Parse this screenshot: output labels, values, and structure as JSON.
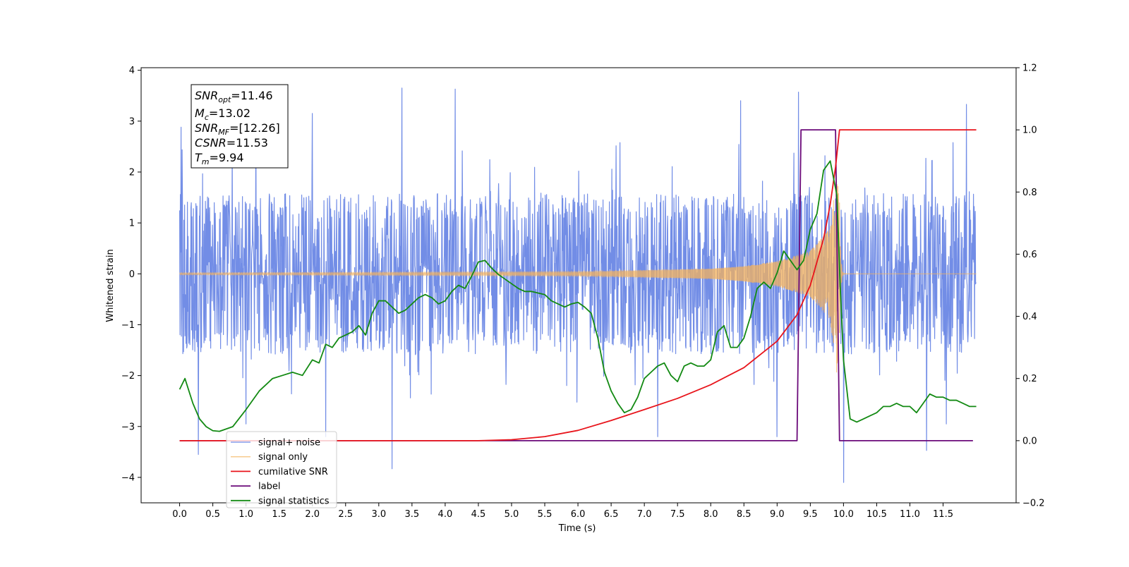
{
  "chart_data": {
    "type": "line",
    "xlabel": "Time (s)",
    "ylabel": "Whitened strain",
    "xlim": [
      -0.58,
      12.6
    ],
    "ylim": [
      -4.5,
      4.05
    ],
    "y2lim": [
      -0.2,
      1.2
    ],
    "x_ticks": [
      0.0,
      0.5,
      1.0,
      1.5,
      2.0,
      2.5,
      3.0,
      3.5,
      4.0,
      4.5,
      5.0,
      5.5,
      6.0,
      6.5,
      7.0,
      7.5,
      8.0,
      8.5,
      9.0,
      9.5,
      10.0,
      10.5,
      11.0,
      11.5
    ],
    "x_tick_labels": [
      "0.0",
      "0.5",
      "1.0",
      "1.5",
      "2.0",
      "2.5",
      "3.0",
      "3.5",
      "4.0",
      "4.5",
      "5.0",
      "5.5",
      "6.0",
      "6.5",
      "7.0",
      "7.5",
      "8.0",
      "8.5",
      "9.0",
      "9.5",
      "10.0",
      "10.5",
      "11.0",
      "11.5"
    ],
    "y_ticks": [
      4,
      3,
      2,
      1,
      0,
      -1,
      -2,
      -3,
      -4
    ],
    "y_tick_labels": [
      "4",
      "3",
      "2",
      "1",
      "0",
      "−1",
      "−2",
      "−3",
      "−4"
    ],
    "y2_ticks": [
      1.2,
      1.0,
      0.8,
      0.6,
      0.4,
      0.2,
      0.0,
      -0.2
    ],
    "y2_tick_labels": [
      "1.2",
      "1.0",
      "0.8",
      "0.6",
      "0.4",
      "0.2",
      "0.0",
      "−0.2"
    ],
    "grid": false,
    "legend_position": "bottom-left",
    "annotation": {
      "lines": [
        {
          "base": "SNR",
          "sub": "opt",
          "value": "=11.46"
        },
        {
          "base": "M",
          "sub": "c",
          "value": "=13.02"
        },
        {
          "base": "SNR",
          "sub": "MF",
          "value": "=[12.26]"
        },
        {
          "base": "CSNR",
          "sub": "",
          "value": "=11.53"
        },
        {
          "base": "T",
          "sub": "m",
          "value": "=9.94"
        }
      ]
    },
    "series": [
      {
        "name": "signal+ noise",
        "color": "#6f8be6",
        "axis": "left",
        "kind": "noise",
        "x_range": [
          0.0,
          12.0
        ],
        "typical_band": [
          -1.5,
          1.5
        ],
        "max_spikes": [
          [
            0.02,
            2.88
          ],
          [
            1.15,
            3.3
          ],
          [
            2.0,
            3.15
          ],
          [
            3.35,
            3.65
          ],
          [
            4.15,
            3.63
          ],
          [
            8.45,
            3.4
          ],
          [
            9.32,
            3.57
          ],
          [
            11.85,
            3.33
          ]
        ],
        "min_spikes": [
          [
            0.28,
            -3.55
          ],
          [
            1.0,
            -2.95
          ],
          [
            2.2,
            -3.2
          ],
          [
            3.2,
            -3.83
          ],
          [
            7.2,
            -3.2
          ],
          [
            9.0,
            -3.2
          ],
          [
            10.0,
            -4.1
          ],
          [
            11.25,
            -3.47
          ],
          [
            11.55,
            -2.95
          ]
        ]
      },
      {
        "name": "signal only",
        "color": "#f5b35c",
        "axis": "left",
        "kind": "chirp",
        "x_range": [
          0.0,
          12.0
        ],
        "merger_time": 9.94,
        "amplitude_envelope": [
          [
            0.0,
            0.02
          ],
          [
            6.0,
            0.04
          ],
          [
            7.0,
            0.07
          ],
          [
            8.0,
            0.1
          ],
          [
            8.5,
            0.15
          ],
          [
            9.0,
            0.25
          ],
          [
            9.5,
            0.45
          ],
          [
            9.8,
            0.9
          ],
          [
            9.9,
            2.0
          ],
          [
            9.94,
            1.4
          ],
          [
            10.0,
            0.05
          ],
          [
            12.0,
            0.02
          ]
        ]
      },
      {
        "name": "cumilative SNR",
        "color": "#e8141b",
        "axis": "right",
        "x": [
          0.0,
          4.5,
          5.0,
          5.5,
          6.0,
          6.5,
          7.0,
          7.5,
          8.0,
          8.5,
          9.0,
          9.3,
          9.5,
          9.7,
          9.8,
          9.88,
          9.94,
          12.0
        ],
        "values": [
          0.0,
          0.0,
          0.003,
          0.013,
          0.033,
          0.065,
          0.1,
          0.136,
          0.18,
          0.235,
          0.32,
          0.405,
          0.5,
          0.65,
          0.76,
          0.88,
          1.0,
          1.0
        ]
      },
      {
        "name": "label",
        "color": "#6b0a7a",
        "axis": "right",
        "x": [
          0.0,
          9.3,
          9.36,
          9.88,
          9.94,
          11.95
        ],
        "values": [
          0.0,
          0.0,
          1.0,
          1.0,
          0.0,
          0.0
        ]
      },
      {
        "name": "signal statistics",
        "color": "#138a13",
        "axis": "right",
        "x": [
          0.0,
          0.08,
          0.2,
          0.3,
          0.4,
          0.5,
          0.6,
          0.8,
          1.0,
          1.2,
          1.4,
          1.55,
          1.7,
          1.85,
          2.0,
          2.1,
          2.2,
          2.3,
          2.4,
          2.5,
          2.6,
          2.7,
          2.8,
          2.9,
          3.0,
          3.1,
          3.2,
          3.3,
          3.4,
          3.5,
          3.6,
          3.7,
          3.8,
          3.9,
          4.0,
          4.1,
          4.2,
          4.3,
          4.4,
          4.5,
          4.6,
          4.7,
          4.8,
          4.9,
          5.0,
          5.1,
          5.2,
          5.3,
          5.4,
          5.5,
          5.6,
          5.7,
          5.8,
          5.9,
          6.0,
          6.1,
          6.2,
          6.3,
          6.4,
          6.5,
          6.6,
          6.7,
          6.8,
          6.9,
          7.0,
          7.1,
          7.2,
          7.3,
          7.4,
          7.5,
          7.6,
          7.7,
          7.8,
          7.9,
          8.0,
          8.1,
          8.2,
          8.3,
          8.4,
          8.5,
          8.6,
          8.7,
          8.8,
          8.9,
          9.0,
          9.1,
          9.2,
          9.3,
          9.4,
          9.5,
          9.6,
          9.7,
          9.8,
          9.9,
          9.95,
          10.0,
          10.1,
          10.2,
          10.3,
          10.4,
          10.5,
          10.6,
          10.7,
          10.8,
          10.9,
          11.0,
          11.1,
          11.2,
          11.3,
          11.4,
          11.5,
          11.6,
          11.7,
          11.8,
          11.9,
          12.0
        ],
        "values": [
          0.165,
          0.2,
          0.12,
          0.07,
          0.045,
          0.032,
          0.03,
          0.045,
          0.1,
          0.16,
          0.2,
          0.21,
          0.22,
          0.21,
          0.26,
          0.25,
          0.31,
          0.3,
          0.33,
          0.34,
          0.35,
          0.37,
          0.34,
          0.41,
          0.45,
          0.45,
          0.43,
          0.41,
          0.42,
          0.44,
          0.46,
          0.47,
          0.46,
          0.44,
          0.45,
          0.48,
          0.5,
          0.49,
          0.53,
          0.575,
          0.58,
          0.555,
          0.535,
          0.52,
          0.505,
          0.49,
          0.48,
          0.48,
          0.475,
          0.47,
          0.45,
          0.44,
          0.43,
          0.44,
          0.445,
          0.43,
          0.41,
          0.33,
          0.22,
          0.16,
          0.12,
          0.09,
          0.1,
          0.14,
          0.2,
          0.22,
          0.24,
          0.25,
          0.21,
          0.19,
          0.24,
          0.25,
          0.24,
          0.24,
          0.26,
          0.35,
          0.37,
          0.3,
          0.3,
          0.33,
          0.4,
          0.49,
          0.51,
          0.49,
          0.54,
          0.61,
          0.58,
          0.55,
          0.58,
          0.68,
          0.73,
          0.87,
          0.9,
          0.79,
          0.5,
          0.26,
          0.07,
          0.06,
          0.07,
          0.08,
          0.09,
          0.11,
          0.11,
          0.12,
          0.11,
          0.11,
          0.09,
          0.12,
          0.15,
          0.14,
          0.14,
          0.13,
          0.13,
          0.12,
          0.11,
          0.11
        ]
      }
    ]
  }
}
